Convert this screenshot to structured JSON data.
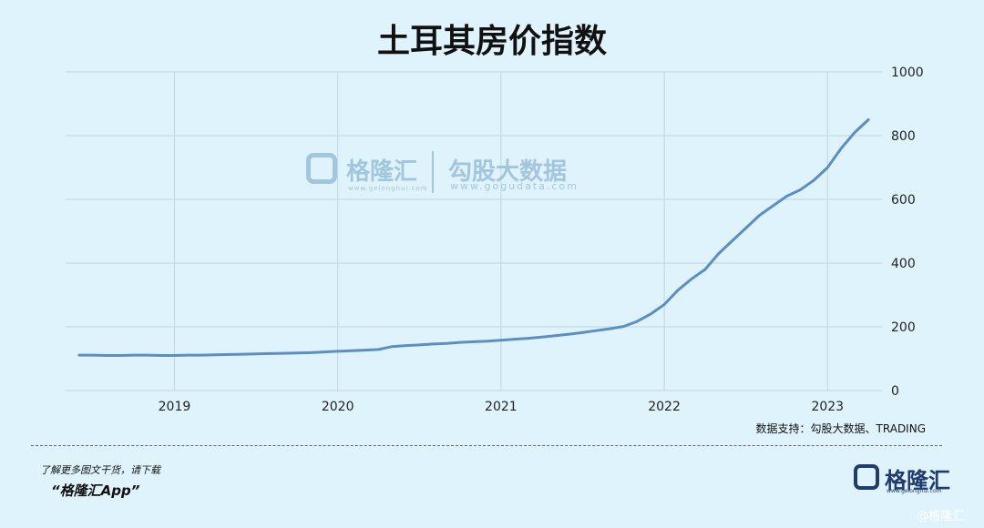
{
  "chart_data": {
    "type": "line",
    "title": "土耳其房价指数",
    "xlabel": "",
    "ylabel": "",
    "x_ticks": [
      "2019",
      "2020",
      "2021",
      "2022",
      "2023"
    ],
    "y_ticks": [
      0,
      200,
      400,
      600,
      800,
      1000
    ],
    "ylim": [
      0,
      1000
    ],
    "xlim": [
      "2018-05",
      "2023-05"
    ],
    "grid": true,
    "color": "#5b8fc4",
    "series": [
      {
        "x": [
          "2018-06",
          "2018-07",
          "2018-08",
          "2018-09",
          "2018-10",
          "2018-11",
          "2018-12",
          "2019-01",
          "2019-02",
          "2019-03",
          "2019-04",
          "2019-05",
          "2019-06",
          "2019-07",
          "2019-08",
          "2019-09",
          "2019-10",
          "2019-11",
          "2019-12",
          "2020-01",
          "2020-02",
          "2020-03",
          "2020-04",
          "2020-05",
          "2020-06",
          "2020-07",
          "2020-08",
          "2020-09",
          "2020-10",
          "2020-11",
          "2020-12",
          "2021-01",
          "2021-02",
          "2021-03",
          "2021-04",
          "2021-05",
          "2021-06",
          "2021-07",
          "2021-08",
          "2021-09",
          "2021-10",
          "2021-11",
          "2021-12",
          "2022-01",
          "2022-02",
          "2022-03",
          "2022-04",
          "2022-05",
          "2022-06",
          "2022-07",
          "2022-08",
          "2022-09",
          "2022-10",
          "2022-11",
          "2022-12",
          "2023-01",
          "2023-02",
          "2023-03",
          "2023-04"
        ],
        "values": [
          111,
          111,
          110,
          110,
          111,
          111,
          110,
          110,
          111,
          111,
          112,
          113,
          114,
          115,
          116,
          117,
          118,
          119,
          121,
          123,
          125,
          127,
          129,
          138,
          141,
          143,
          146,
          148,
          151,
          153,
          155,
          158,
          161,
          164,
          168,
          172,
          177,
          182,
          188,
          194,
          201,
          217,
          240,
          270,
          315,
          350,
          380,
          430,
          470,
          510,
          550,
          580,
          610,
          630,
          660,
          700,
          760,
          810,
          850
        ]
      }
    ]
  },
  "watermark": {
    "name": "格隆汇",
    "url1": "www.gelonghui.com",
    "name2": "勾股大数据",
    "url2": "www.gogudata.com"
  },
  "source": "数据支持：勾股大数据、TRADING",
  "promo": {
    "line1": "了解更多图文干货，请下载",
    "line2": "“格隆汇App”"
  },
  "brand": {
    "name": "格隆汇",
    "url": "www.gelonghui.com"
  },
  "corner_watermark": "@格隆汇"
}
